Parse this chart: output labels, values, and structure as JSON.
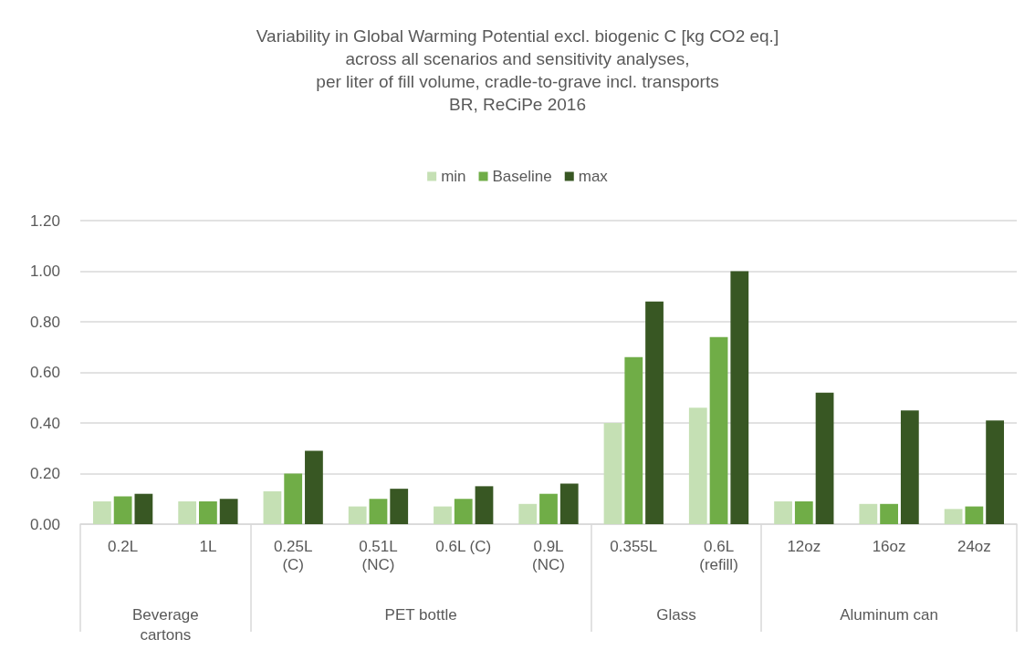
{
  "chart_data": {
    "type": "bar",
    "title": "Variability in Global Warming Potential excl. biogenic C [kg CO2 eq.]\nacross all scenarios and sensitivity analyses,\nper liter of fill volume, cradle-to-grave incl. transports\nBR, ReCiPe 2016",
    "categories": [
      "0.2L",
      "1L",
      "0.25L\n(C)",
      "0.51L\n(NC)",
      "0.6L (C)",
      "0.9L\n(NC)",
      "0.355L",
      "0.6L\n(refill)",
      "12oz",
      "16oz",
      "24oz"
    ],
    "series": [
      {
        "name": "min",
        "color": "#c5e0b4",
        "values": [
          0.09,
          0.09,
          0.13,
          0.07,
          0.07,
          0.08,
          0.4,
          0.46,
          0.09,
          0.08,
          0.06
        ]
      },
      {
        "name": "Baseline",
        "color": "#70ad47",
        "values": [
          0.11,
          0.09,
          0.2,
          0.1,
          0.1,
          0.12,
          0.66,
          0.74,
          0.09,
          0.08,
          0.07
        ]
      },
      {
        "name": "max",
        "color": "#385723",
        "values": [
          0.12,
          0.1,
          0.29,
          0.14,
          0.15,
          0.16,
          0.88,
          1.0,
          0.52,
          0.45,
          0.41
        ]
      }
    ],
    "annotations": [
      "Beverage\ncartons",
      "PET bottle",
      "Glass",
      "Aluminum can"
    ],
    "ylim": [
      0,
      1.2
    ],
    "yticks": [
      {
        "value": 0,
        "label": "0.00"
      },
      {
        "value": 0.2,
        "label": "0.20"
      },
      {
        "value": 0.4,
        "label": "0.40"
      },
      {
        "value": 0.6,
        "label": "0.60"
      },
      {
        "value": 0.8,
        "label": "0.80"
      },
      {
        "value": 1,
        "label": "1.00"
      },
      {
        "value": 1.2,
        "label": "1.20"
      }
    ],
    "grid": "y",
    "legend": "top"
  }
}
